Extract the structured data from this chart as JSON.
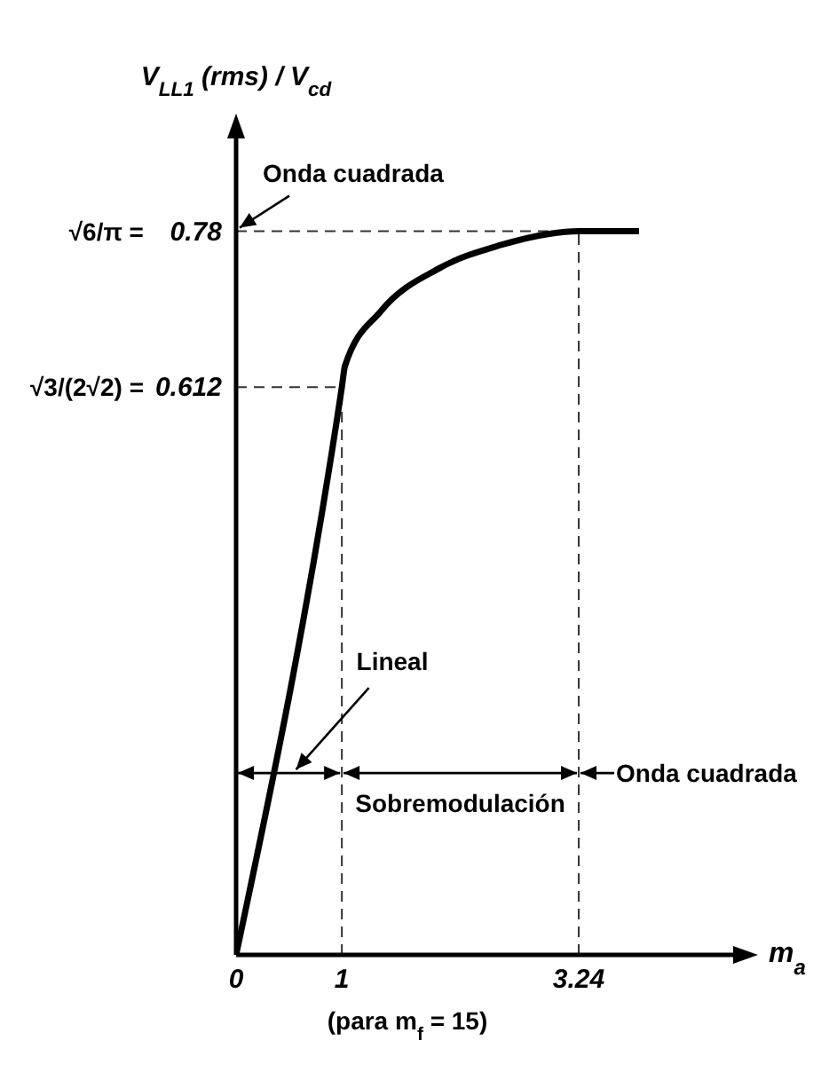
{
  "chart_data": {
    "type": "line",
    "ylabel": "V$_{LL1}$(rms) / V$_{cd}$",
    "xlabel": "m$_{a}$",
    "series": [
      {
        "color": "#000000",
        "x": [
          0,
          1,
          1.03,
          1.37,
          1.92,
          2.5,
          2.95,
          3.24,
          3.81
        ],
        "values": [
          0,
          0.612,
          0.635,
          0.694,
          0.74,
          0.765,
          0.777,
          0.78,
          0.78
        ]
      }
    ],
    "xlim": [
      0,
      4.7
    ],
    "xticks": [
      0,
      1,
      3.24
    ],
    "ylim": [
      0,
      0.88
    ],
    "yticks": [
      0.612,
      0.78
    ],
    "ref_lines": [
      {
        "axis": "y",
        "value": 0.78,
        "line_style": "dashed"
      },
      {
        "axis": "y",
        "value": 0.612,
        "line_style": "dashed"
      },
      {
        "axis": "x",
        "value": 1,
        "line_style": "dashed"
      },
      {
        "axis": "x",
        "value": 3.24,
        "line_style": "dashed"
      }
    ],
    "annotations": [
      {
        "text": "Onda cuadrada",
        "x": 0,
        "y": 0.78
      },
      "Lineal",
      "Sobremodulación",
      {
        "text": "Onda cuadrada",
        "x": 3.24,
        "y": 0.196
      },
      "(para m$_{f}$ = 15)",
      "√3/(2√2) =",
      "√6/π ="
    ],
    "grid": false,
    "marker": "none",
    "line_style": "solid"
  }
}
